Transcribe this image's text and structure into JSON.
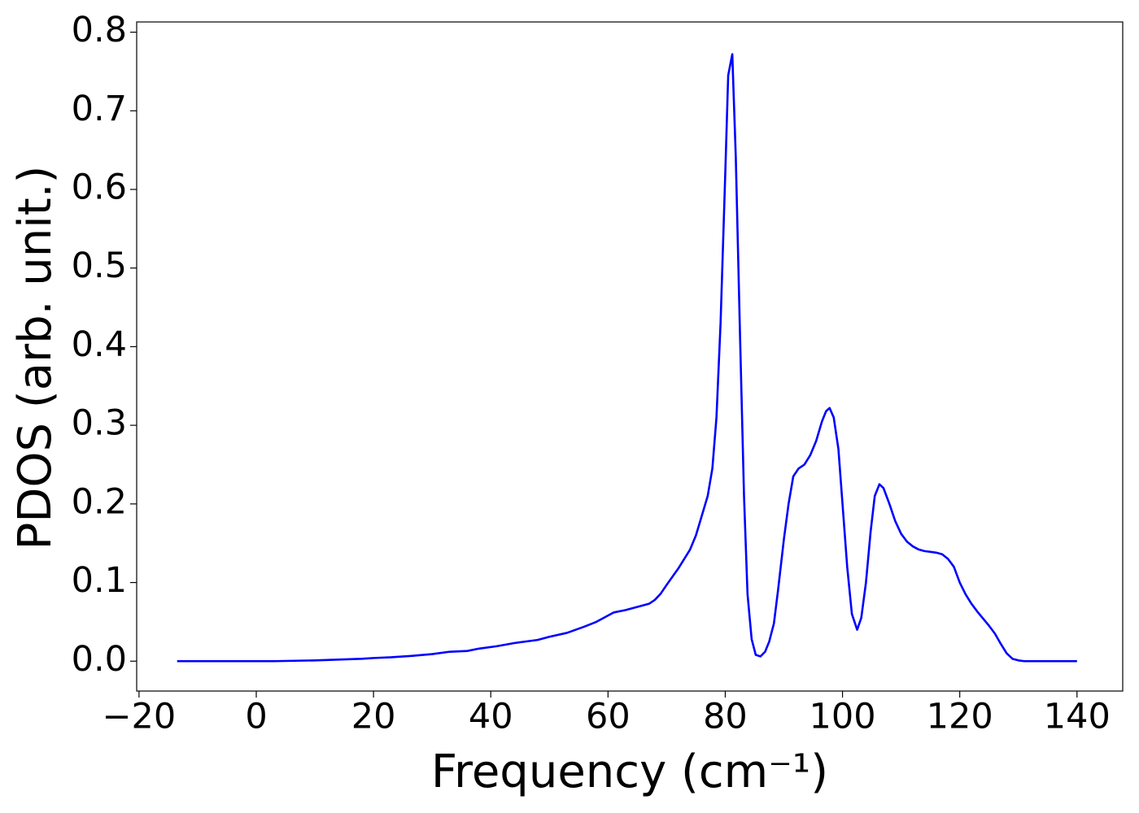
{
  "chart_data": {
    "type": "line",
    "xlabel": "Frequency (cm⁻¹)",
    "ylabel": "PDOS (arb. unit.)",
    "xlim": [
      -20.4,
      147.8
    ],
    "ylim": [
      -0.038,
      0.813
    ],
    "xticks": [
      {
        "value": -20,
        "label": "−20"
      },
      0,
      20,
      40,
      60,
      80,
      100,
      120,
      140
    ],
    "yticks": [
      {
        "value": 0,
        "label": "0.0"
      },
      0.1,
      0.2,
      0.3,
      0.4,
      0.5,
      0.6,
      0.7,
      0.8
    ],
    "grid": false,
    "x": [
      -13.5,
      0,
      3,
      10,
      18,
      20,
      23,
      27,
      30,
      33,
      36,
      38,
      41,
      44,
      48,
      50,
      53,
      56,
      58,
      60,
      61,
      63,
      65,
      67,
      68,
      69,
      70,
      72,
      74,
      75,
      76,
      77,
      77.8,
      78.5,
      79.2,
      80,
      80.5,
      81.2,
      81.8,
      82.5,
      83.2,
      83.8,
      84.5,
      85.2,
      86,
      86.8,
      87.5,
      88.3,
      89,
      90,
      90.8,
      91.6,
      92.5,
      93.5,
      94.5,
      95.5,
      96.5,
      97.2,
      97.8,
      98.5,
      99.3,
      100,
      100.8,
      101.6,
      102.5,
      103.2,
      104,
      104.8,
      105.5,
      106.3,
      107,
      108,
      109,
      110,
      111,
      112,
      113,
      114,
      116,
      117,
      118,
      119,
      120,
      121,
      122,
      123,
      125,
      126,
      127,
      128,
      129,
      130,
      131,
      140
    ],
    "series": [
      {
        "color": "#0000ff",
        "values": [
          0,
          0,
          0,
          0.001,
          0.003,
          0.004,
          0.005,
          0.007,
          0.009,
          0.012,
          0.013,
          0.016,
          0.019,
          0.023,
          0.027,
          0.031,
          0.036,
          0.044,
          0.05,
          0.058,
          0.062,
          0.065,
          0.069,
          0.073,
          0.078,
          0.086,
          0.097,
          0.118,
          0.142,
          0.16,
          0.185,
          0.21,
          0.245,
          0.31,
          0.43,
          0.62,
          0.745,
          0.772,
          0.64,
          0.42,
          0.21,
          0.085,
          0.028,
          0.008,
          0.006,
          0.012,
          0.025,
          0.048,
          0.09,
          0.155,
          0.2,
          0.235,
          0.245,
          0.25,
          0.262,
          0.28,
          0.305,
          0.318,
          0.322,
          0.31,
          0.27,
          0.2,
          0.12,
          0.06,
          0.04,
          0.055,
          0.1,
          0.165,
          0.21,
          0.225,
          0.22,
          0.2,
          0.178,
          0.162,
          0.152,
          0.146,
          0.142,
          0.14,
          0.138,
          0.136,
          0.13,
          0.12,
          0.1,
          0.085,
          0.073,
          0.063,
          0.045,
          0.035,
          0.022,
          0.01,
          0.003,
          0.001,
          0,
          0
        ]
      }
    ]
  }
}
